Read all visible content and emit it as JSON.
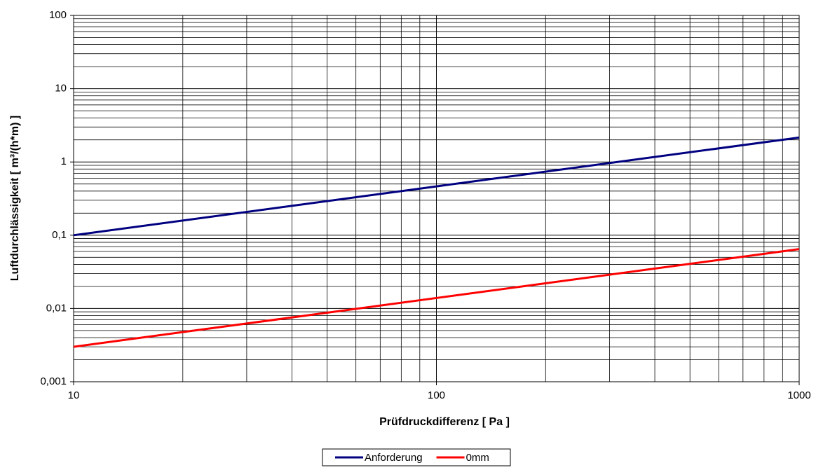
{
  "chart_data": {
    "type": "line",
    "x_label": "Prüfdruckdifferenz [ Pa ]",
    "y_label": "Luftdurchlässigkeit [ m³/(h*m) ]",
    "x": [
      10,
      100,
      1000
    ],
    "series": [
      {
        "name": "Anforderung",
        "color": "#000080",
        "values": [
          0.1,
          0.464,
          2.154
        ]
      },
      {
        "name": "0mm",
        "color": "#ff0000",
        "values": [
          0.003,
          0.0139,
          0.0646
        ]
      }
    ],
    "xlim": [
      10,
      1000
    ],
    "ylim": [
      0.001,
      100
    ],
    "xticks": [
      10,
      100,
      1000
    ],
    "yticks": [
      {
        "value": 0.001,
        "label": "0,001"
      },
      {
        "value": 0.01,
        "label": "0,01"
      },
      {
        "value": 0.1,
        "label": "0,1"
      },
      1,
      10,
      100
    ],
    "xscale": "log",
    "yscale": "log",
    "grid": true,
    "minor_grid": true,
    "legend": "bottom"
  }
}
